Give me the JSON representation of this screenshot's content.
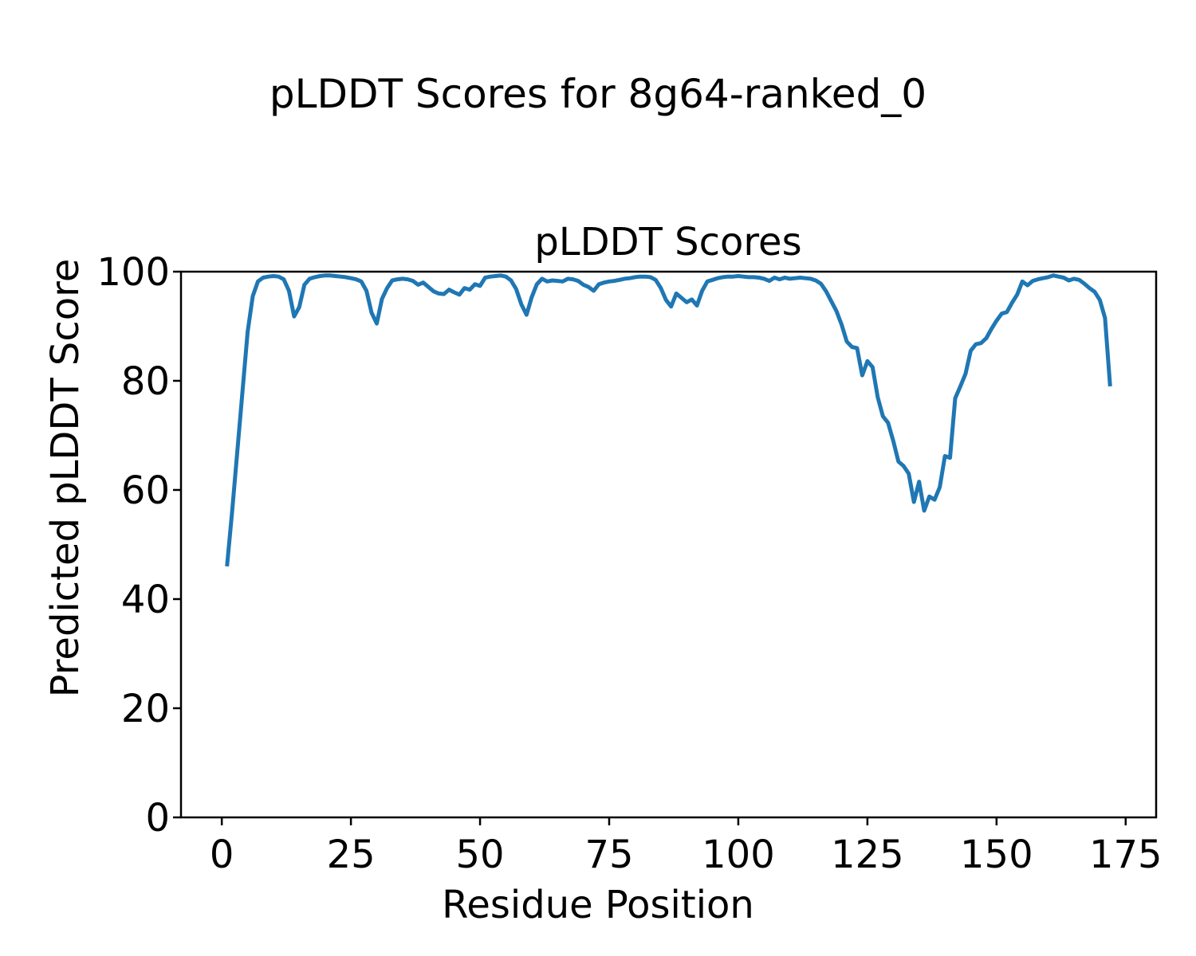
{
  "figure": {
    "suptitle": "pLDDT Scores for 8g64-ranked_0",
    "background_color": "#ffffff",
    "text_color": "#000000"
  },
  "chart_data": {
    "type": "line",
    "title": "pLDDT Scores",
    "xlabel": "Residue Position",
    "ylabel": "Predicted pLDDT Score",
    "grid": false,
    "legend": "none",
    "xlim": [
      -7.9,
      180.9
    ],
    "ylim": [
      0,
      100
    ],
    "x_ticks": [
      0,
      25,
      50,
      75,
      100,
      125,
      150,
      175
    ],
    "y_ticks": [
      0,
      20,
      40,
      60,
      80,
      100
    ],
    "series": [
      {
        "name": "pLDDT",
        "color": "#1f77b4",
        "line_width": 5,
        "x_start": 1,
        "x_step": 1,
        "values": [
          46.0,
          56.0,
          67.0,
          78.0,
          89.0,
          95.5,
          98.2,
          98.9,
          99.1,
          99.2,
          99.1,
          98.6,
          96.5,
          91.8,
          93.5,
          97.6,
          98.7,
          99.0,
          99.2,
          99.3,
          99.3,
          99.2,
          99.1,
          99.0,
          98.8,
          98.6,
          98.2,
          96.5,
          92.5,
          90.5,
          95.0,
          97.0,
          98.4,
          98.6,
          98.7,
          98.6,
          98.3,
          97.6,
          98.0,
          97.2,
          96.4,
          96.0,
          95.9,
          96.7,
          96.2,
          95.8,
          97.0,
          96.7,
          97.7,
          97.4,
          98.9,
          99.1,
          99.2,
          99.3,
          99.1,
          98.4,
          96.8,
          94.0,
          92.1,
          95.3,
          97.7,
          98.7,
          98.2,
          98.4,
          98.3,
          98.2,
          98.7,
          98.6,
          98.3,
          97.6,
          97.2,
          96.5,
          97.7,
          98.0,
          98.2,
          98.3,
          98.5,
          98.7,
          98.8,
          99.0,
          99.1,
          99.1,
          99.0,
          98.5,
          97.0,
          94.8,
          93.6,
          96.0,
          95.2,
          94.4,
          94.9,
          93.8,
          96.5,
          98.2,
          98.5,
          98.8,
          99.0,
          99.1,
          99.1,
          99.2,
          99.1,
          99.0,
          99.0,
          98.9,
          98.7,
          98.3,
          98.9,
          98.6,
          98.9,
          98.7,
          98.8,
          98.9,
          98.8,
          98.7,
          98.4,
          97.8,
          96.4,
          94.6,
          92.8,
          90.3,
          87.2,
          86.2,
          86.0,
          81.0,
          83.6,
          82.5,
          77.0,
          73.5,
          72.3,
          69.0,
          65.2,
          64.4,
          63.0,
          57.8,
          61.5,
          56.2,
          58.8,
          58.2,
          60.5,
          66.2,
          65.9,
          76.8,
          79.0,
          81.3,
          85.5,
          86.7,
          86.9,
          87.8,
          89.5,
          91.0,
          92.3,
          92.6,
          94.3,
          95.8,
          98.2,
          97.5,
          98.3,
          98.6,
          98.8,
          99.0,
          99.3,
          99.1,
          98.9,
          98.4,
          98.7,
          98.5,
          97.8,
          97.0,
          96.3,
          94.8,
          91.5,
          79.0
        ]
      }
    ]
  }
}
